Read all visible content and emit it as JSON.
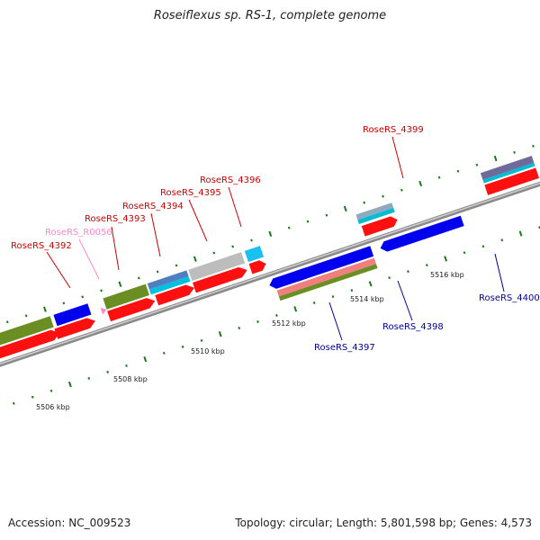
{
  "title": "Roseiflexus sp. RS-1, complete genome",
  "footer": {
    "accession": "Accession: NC_009523",
    "topology": "Topology: circular; Length: 5,801,598 bp; Genes: 4,573"
  },
  "colors": {
    "label_forward": "#cc0000",
    "label_reverse": "#000099",
    "label_rna": "#ff88cc",
    "backbone": "#8a8a8a",
    "tick": "#1a7a1a"
  },
  "tick_labels": [
    "5506 kbp",
    "5508 kbp",
    "5510 kbp",
    "5512 kbp",
    "5514 kbp",
    "5516 kbp"
  ],
  "gene_labels": [
    {
      "text": "RoseRS_4392",
      "strand": "forward"
    },
    {
      "text": "RoseRS_R0056",
      "strand": "rna"
    },
    {
      "text": "RoseRS_4393",
      "strand": "forward"
    },
    {
      "text": "RoseRS_4394",
      "strand": "forward"
    },
    {
      "text": "RoseRS_4395",
      "strand": "forward"
    },
    {
      "text": "RoseRS_4396",
      "strand": "forward"
    },
    {
      "text": "RoseRS_4399",
      "strand": "forward"
    },
    {
      "text": "RoseRS_4397",
      "strand": "reverse"
    },
    {
      "text": "RoseRS_4398",
      "strand": "reverse"
    },
    {
      "text": "RoseRS_4400",
      "strand": "reverse"
    }
  ]
}
